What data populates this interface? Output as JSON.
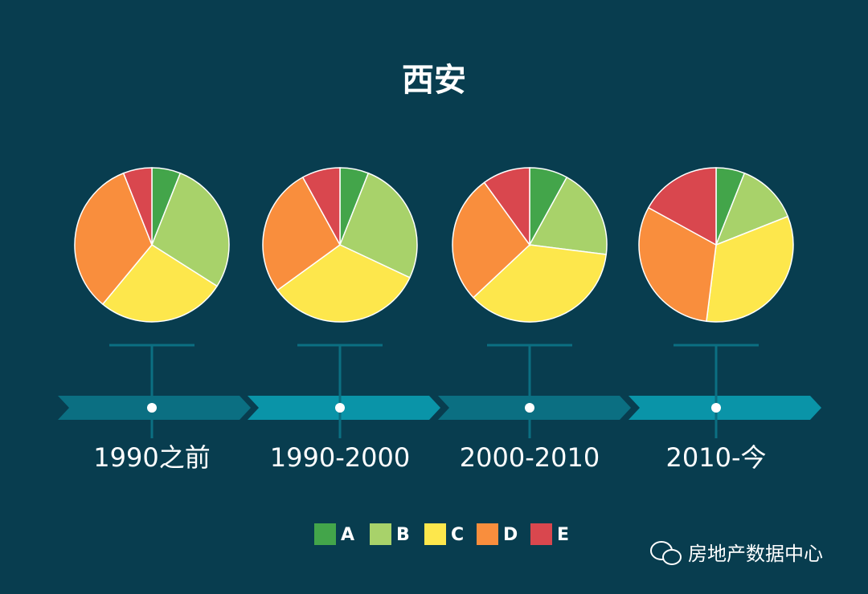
{
  "title": "西安",
  "watermark": "房地产数据中心",
  "chart_data": [
    {
      "type": "pie",
      "label": "1990之前",
      "categories": [
        "A",
        "B",
        "C",
        "D",
        "E"
      ],
      "values": [
        6,
        28,
        27,
        33,
        6
      ],
      "colors": [
        "#43a54a",
        "#a8d26a",
        "#fde74c",
        "#f98e3d",
        "#d9474e"
      ]
    },
    {
      "type": "pie",
      "label": "1990-2000",
      "categories": [
        "A",
        "B",
        "C",
        "D",
        "E"
      ],
      "values": [
        6,
        26,
        33,
        27,
        8
      ],
      "colors": [
        "#43a54a",
        "#a8d26a",
        "#fde74c",
        "#f98e3d",
        "#d9474e"
      ]
    },
    {
      "type": "pie",
      "label": "2000-2010",
      "categories": [
        "A",
        "B",
        "C",
        "D",
        "E"
      ],
      "values": [
        8,
        19,
        36,
        27,
        10
      ],
      "colors": [
        "#43a54a",
        "#a8d26a",
        "#fde74c",
        "#f98e3d",
        "#d9474e"
      ]
    },
    {
      "type": "pie",
      "label": "2010-今",
      "categories": [
        "A",
        "B",
        "C",
        "D",
        "E"
      ],
      "values": [
        6,
        13,
        33,
        31,
        17
      ],
      "colors": [
        "#43a54a",
        "#a8d26a",
        "#fde74c",
        "#f98e3d",
        "#d9474e"
      ]
    }
  ]
}
